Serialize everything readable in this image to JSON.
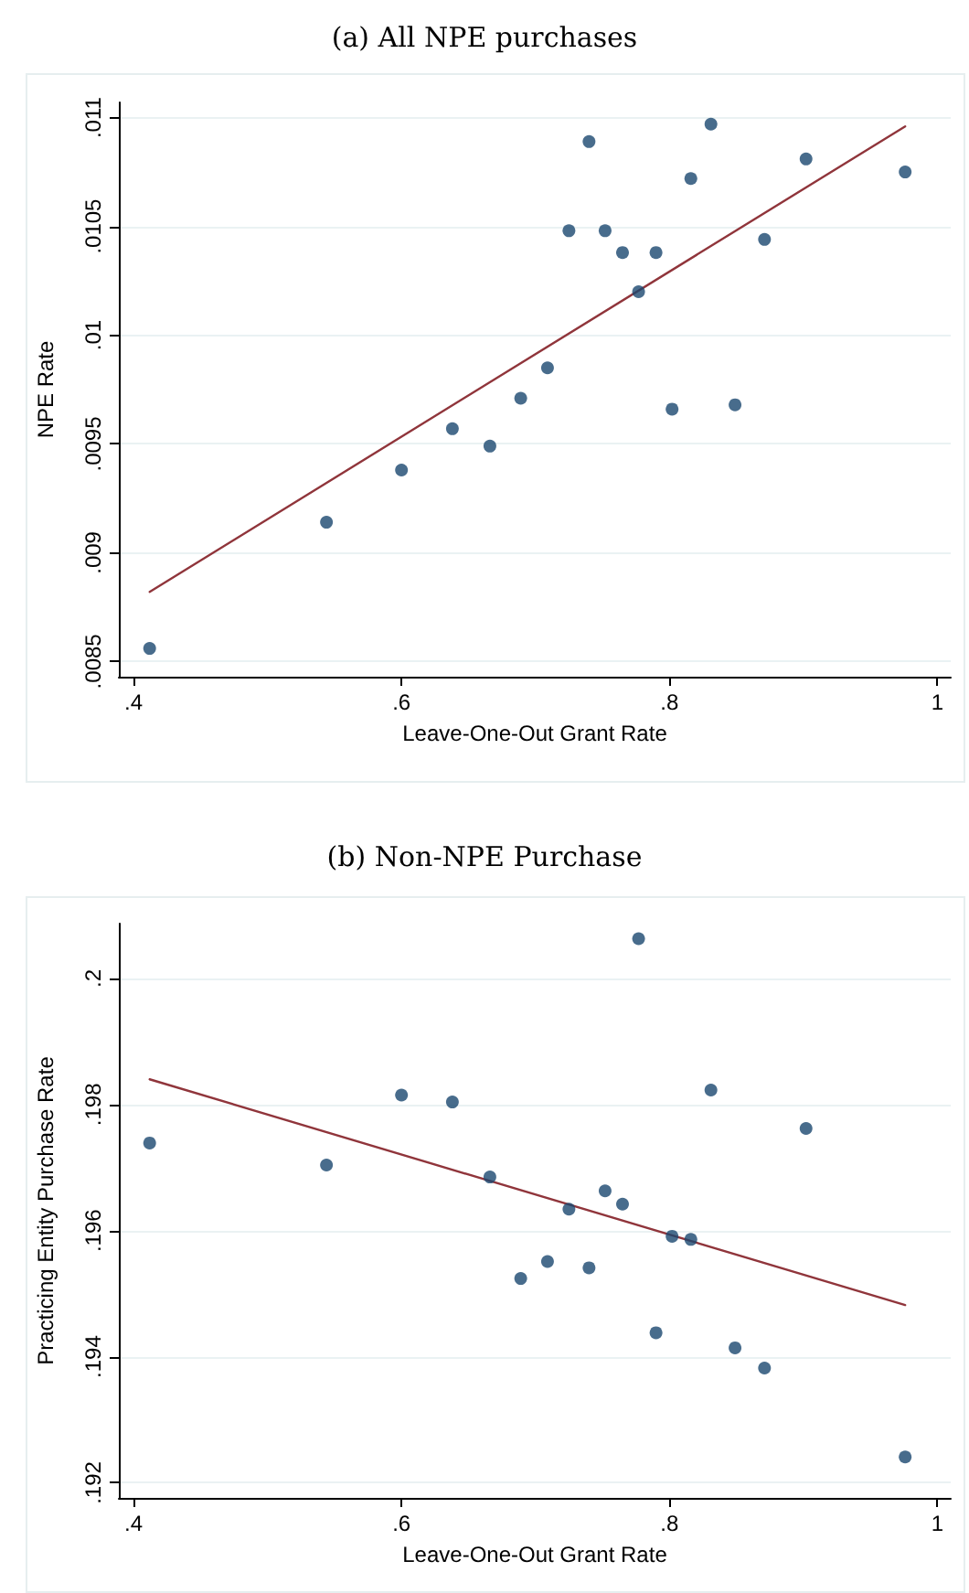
{
  "chart_data": [
    {
      "type": "scatter",
      "title": "(a) All NPE purchases",
      "xlabel": "Leave-One-Out Grant Rate",
      "ylabel": "NPE Rate",
      "xlim": [
        0.389,
        1.01
      ],
      "ylim": [
        0.00843,
        0.01107
      ],
      "xticks": [
        {
          "value": 0.4,
          "label": ".4"
        },
        {
          "value": 0.6,
          "label": ".6"
        },
        {
          "value": 0.8,
          "label": ".8"
        },
        1
      ],
      "yticks": [
        {
          "value": 0.0085,
          "label": ".0085"
        },
        {
          "value": 0.009,
          "label": ".009"
        },
        {
          "value": 0.0095,
          "label": ".0095"
        },
        {
          "value": 0.01,
          "label": ".01"
        },
        {
          "value": 0.0105,
          "label": ".0105"
        },
        {
          "value": 0.011,
          "label": ".011"
        }
      ],
      "grid": "y",
      "marker": "circle",
      "series": [
        {
          "color": "#1a476f",
          "x": [
            0.412,
            0.544,
            0.6,
            0.638,
            0.666,
            0.689,
            0.709,
            0.725,
            0.74,
            0.752,
            0.765,
            0.777,
            0.79,
            0.802,
            0.816,
            0.831,
            0.849,
            0.871,
            0.902,
            0.976
          ],
          "values": [
            0.00856,
            0.00914,
            0.00938,
            0.00957,
            0.00949,
            0.00971,
            0.00985,
            0.01048,
            0.01089,
            0.01048,
            0.01038,
            0.0102,
            0.01038,
            0.00966,
            0.01072,
            0.01097,
            0.00968,
            0.01044,
            0.01081,
            0.01075
          ]
        },
        {
          "type": "line",
          "color": "#90353b",
          "marker": "none",
          "line_style": "solid",
          "x": [
            0.412,
            0.976
          ],
          "values": [
            0.00882,
            0.01096
          ]
        }
      ]
    },
    {
      "type": "scatter",
      "title": "(b) Non-NPE Purchase",
      "xlabel": "Leave-One-Out Grant Rate",
      "ylabel": "Practicing Entity Purchase Rate",
      "xlim": [
        0.389,
        1.01
      ],
      "ylim": [
        0.19176,
        0.20087
      ],
      "xticks": [
        {
          "value": 0.4,
          "label": ".4"
        },
        {
          "value": 0.6,
          "label": ".6"
        },
        {
          "value": 0.8,
          "label": ".8"
        },
        1
      ],
      "yticks": [
        {
          "value": 0.192,
          "label": ".192"
        },
        {
          "value": 0.194,
          "label": ".194"
        },
        {
          "value": 0.196,
          "label": ".196"
        },
        {
          "value": 0.198,
          "label": ".198"
        },
        {
          "value": 0.2,
          "label": ".2"
        }
      ],
      "grid": "y",
      "marker": "circle",
      "series": [
        {
          "color": "#1a476f",
          "x": [
            0.412,
            0.544,
            0.6,
            0.638,
            0.666,
            0.689,
            0.709,
            0.725,
            0.74,
            0.752,
            0.765,
            0.777,
            0.79,
            0.802,
            0.816,
            0.831,
            0.849,
            0.871,
            0.902,
            0.976
          ],
          "values": [
            0.19739,
            0.19704,
            0.19815,
            0.19804,
            0.19685,
            0.19524,
            0.19551,
            0.19634,
            0.19541,
            0.19663,
            0.19642,
            0.20063,
            0.19438,
            0.19591,
            0.19586,
            0.19823,
            0.19414,
            0.19382,
            0.19762,
            0.19241
          ]
        },
        {
          "type": "line",
          "color": "#90353b",
          "marker": "none",
          "line_style": "solid",
          "x": [
            0.412,
            0.976
          ],
          "values": [
            0.1984,
            0.19482
          ]
        }
      ]
    }
  ]
}
